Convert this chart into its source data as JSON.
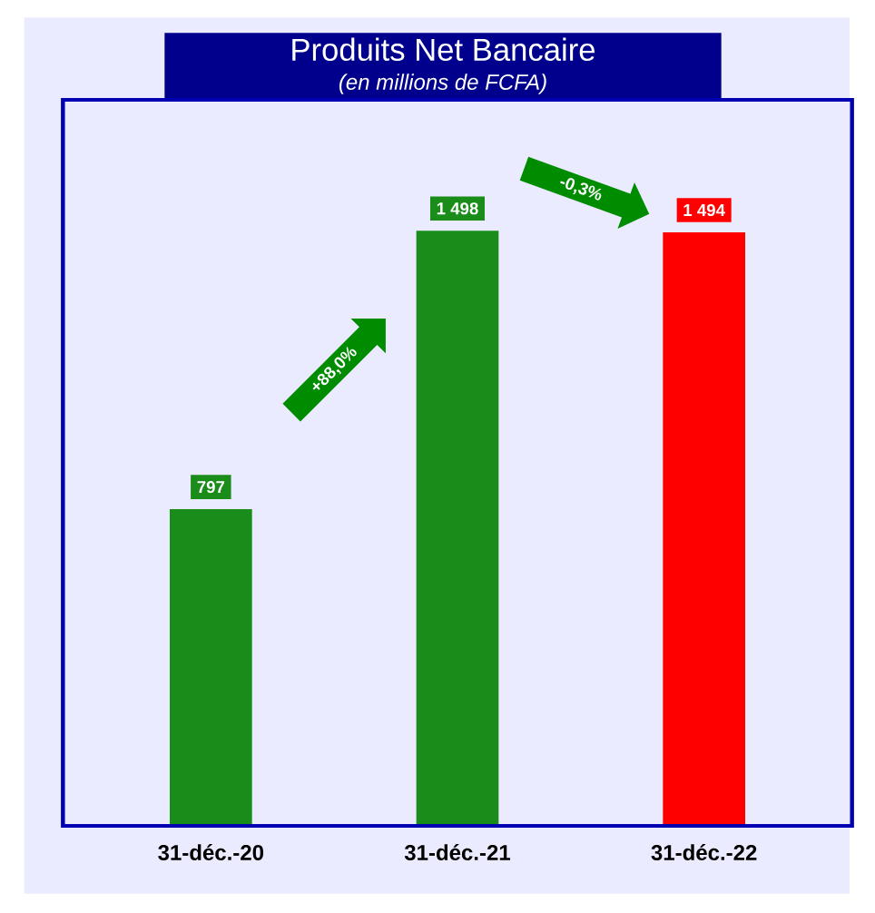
{
  "chart_data": {
    "type": "bar",
    "title": "Produits Net Bancaire",
    "subtitle": "(en millions de FCFA)",
    "categories": [
      "31-déc.-20",
      "31-déc.-21",
      "31-déc.-22"
    ],
    "values": [
      797,
      1498,
      1494
    ],
    "colors": [
      "#1a8c1a",
      "#1a8c1a",
      "#ff0000"
    ],
    "value_labels": [
      "797",
      "1 498",
      "1 494"
    ],
    "annotations": [
      "+88,0%",
      "-0,3%"
    ],
    "tick_labels": "x"
  }
}
